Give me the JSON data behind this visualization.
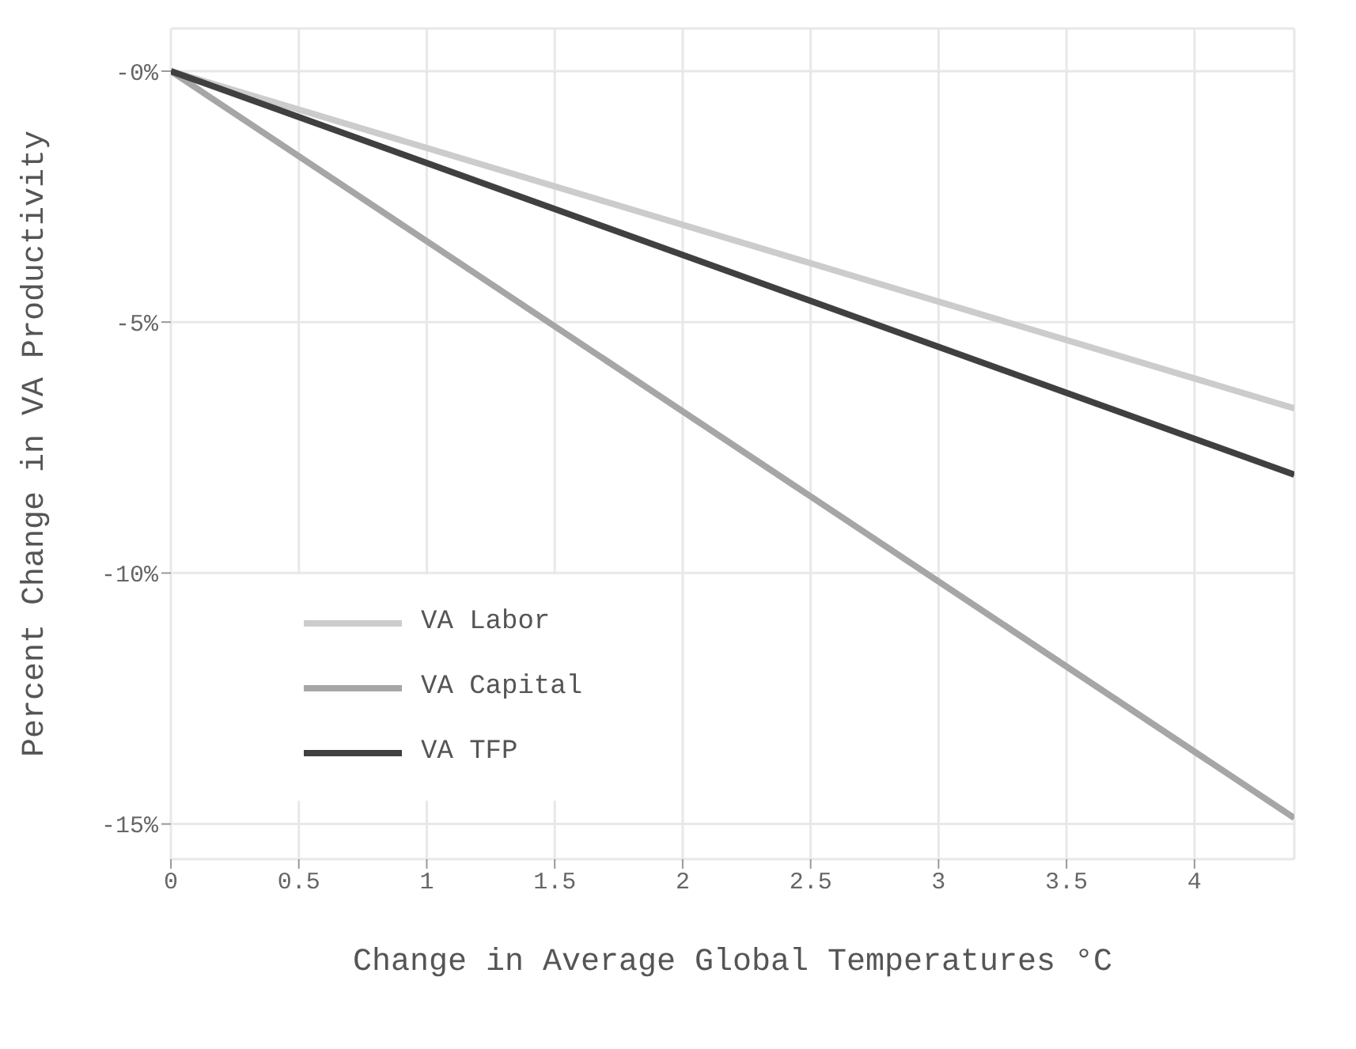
{
  "chart_data": {
    "type": "line",
    "xlabel": "Change in Average Global Temperatures °C",
    "ylabel": "Percent Change in VA Productivity",
    "x": [
      0,
      4.39
    ],
    "series": [
      {
        "name": "VA Labor",
        "color": "#cccccc",
        "values": [
          0,
          -6.72
        ]
      },
      {
        "name": "VA Capital",
        "color": "#a6a6a6",
        "values": [
          0,
          -14.88
        ]
      },
      {
        "name": "VA TFP",
        "color": "#404040",
        "values": [
          0,
          -8.04
        ]
      }
    ],
    "xlim": [
      0,
      4.39
    ],
    "xticks": [
      0,
      0.5,
      1,
      1.5,
      2,
      2.5,
      3,
      3.5,
      4
    ],
    "ylim": [
      -15.7,
      0.85
    ],
    "yticks": [
      {
        "value": 0,
        "label": "-0%"
      },
      {
        "value": -5,
        "label": "-5%"
      },
      {
        "value": -10,
        "label": "-10%"
      },
      {
        "value": -15,
        "label": "-15%"
      }
    ],
    "grid": true,
    "legend": "bottom left",
    "marker": "none",
    "line_style": "solid"
  }
}
